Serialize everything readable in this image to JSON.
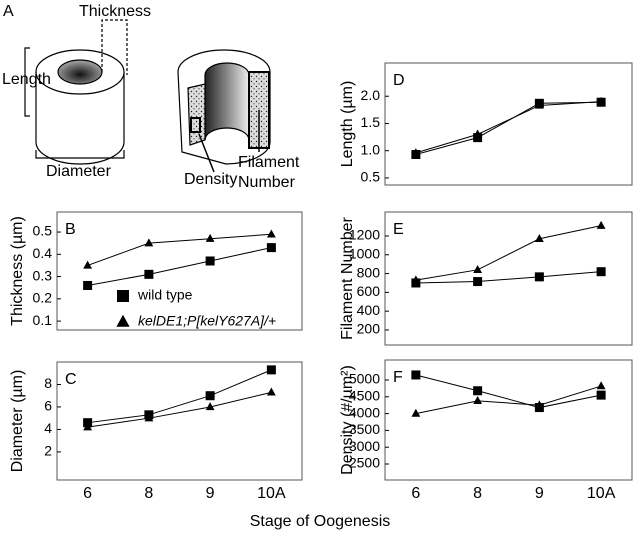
{
  "panel_a": {
    "panel": "A",
    "thickness": "Thickness",
    "length": "Length",
    "diameter": "Diameter",
    "density": "Density",
    "filament_number": [
      "Filament",
      "Number"
    ]
  },
  "x_axis_label": "Stage of Oogenesis",
  "chart_data": [
    {
      "type": "line",
      "panel": "B",
      "y_label": "Thickness (µm)",
      "ylim": [
        0.06,
        0.59
      ],
      "yticks": [
        0.1,
        0.2,
        0.3,
        0.4,
        0.5
      ],
      "series": [
        {
          "name": "wild type",
          "marker": "square",
          "color": "#000000",
          "values": [
            0.26,
            0.31,
            0.37,
            0.43
          ]
        },
        {
          "name": "kelDE1;P[kelY627A]/+",
          "marker": "triangle",
          "color": "#000000",
          "values": [
            0.35,
            0.45,
            0.47,
            0.49
          ]
        }
      ]
    },
    {
      "type": "line",
      "panel": "C",
      "y_label": "Diameter (µm)",
      "categories": [
        "6",
        "8",
        "9",
        "10A"
      ],
      "ylim": [
        -0.5,
        10
      ],
      "yticks": [
        2,
        4,
        6,
        8
      ],
      "series": [
        {
          "marker": "square",
          "color": "#000000",
          "values": [
            4.6,
            5.3,
            7.0,
            9.3
          ]
        },
        {
          "marker": "triangle",
          "color": "#000000",
          "values": [
            4.2,
            5.0,
            6.0,
            7.3
          ]
        }
      ]
    },
    {
      "type": "line",
      "panel": "D",
      "y_label": "Length (µm)",
      "ylim": [
        0.37,
        2.61
      ],
      "yticks": [
        {
          "value": 0.5,
          "label": "0.5"
        },
        {
          "value": 1,
          "label": "1.0"
        },
        {
          "value": 1.5,
          "label": "1.5"
        },
        {
          "value": 2,
          "label": "2.0"
        }
      ],
      "series": [
        {
          "marker": "square",
          "color": "#000000",
          "values": [
            0.93,
            1.24,
            1.87,
            1.89
          ]
        },
        {
          "marker": "triangle",
          "color": "#000000",
          "values": [
            0.96,
            1.3,
            1.83,
            1.9
          ]
        }
      ]
    },
    {
      "type": "line",
      "panel": "E",
      "y_label": "Filament Number",
      "ylim": [
        40,
        1455
      ],
      "yticks": [
        200,
        400,
        600,
        800,
        1000,
        1200
      ],
      "series": [
        {
          "marker": "square",
          "color": "#000000",
          "values": [
            700,
            715,
            765,
            820
          ]
        },
        {
          "marker": "triangle",
          "color": "#000000",
          "values": [
            730,
            840,
            1170,
            1310
          ]
        }
      ]
    },
    {
      "type": "line",
      "panel": "F",
      "y_label": "Density (#/µm²)",
      "categories": [
        "6",
        "8",
        "9",
        "10A"
      ],
      "ylim": [
        2024,
        5595
      ],
      "yticks": [
        2500,
        3000,
        3500,
        4000,
        4500,
        5000
      ],
      "series": [
        {
          "marker": "square",
          "color": "#000000",
          "values": [
            5150,
            4680,
            4180,
            4550
          ]
        },
        {
          "marker": "triangle",
          "color": "#000000",
          "values": [
            4000,
            4380,
            4250,
            4820
          ]
        }
      ]
    }
  ]
}
